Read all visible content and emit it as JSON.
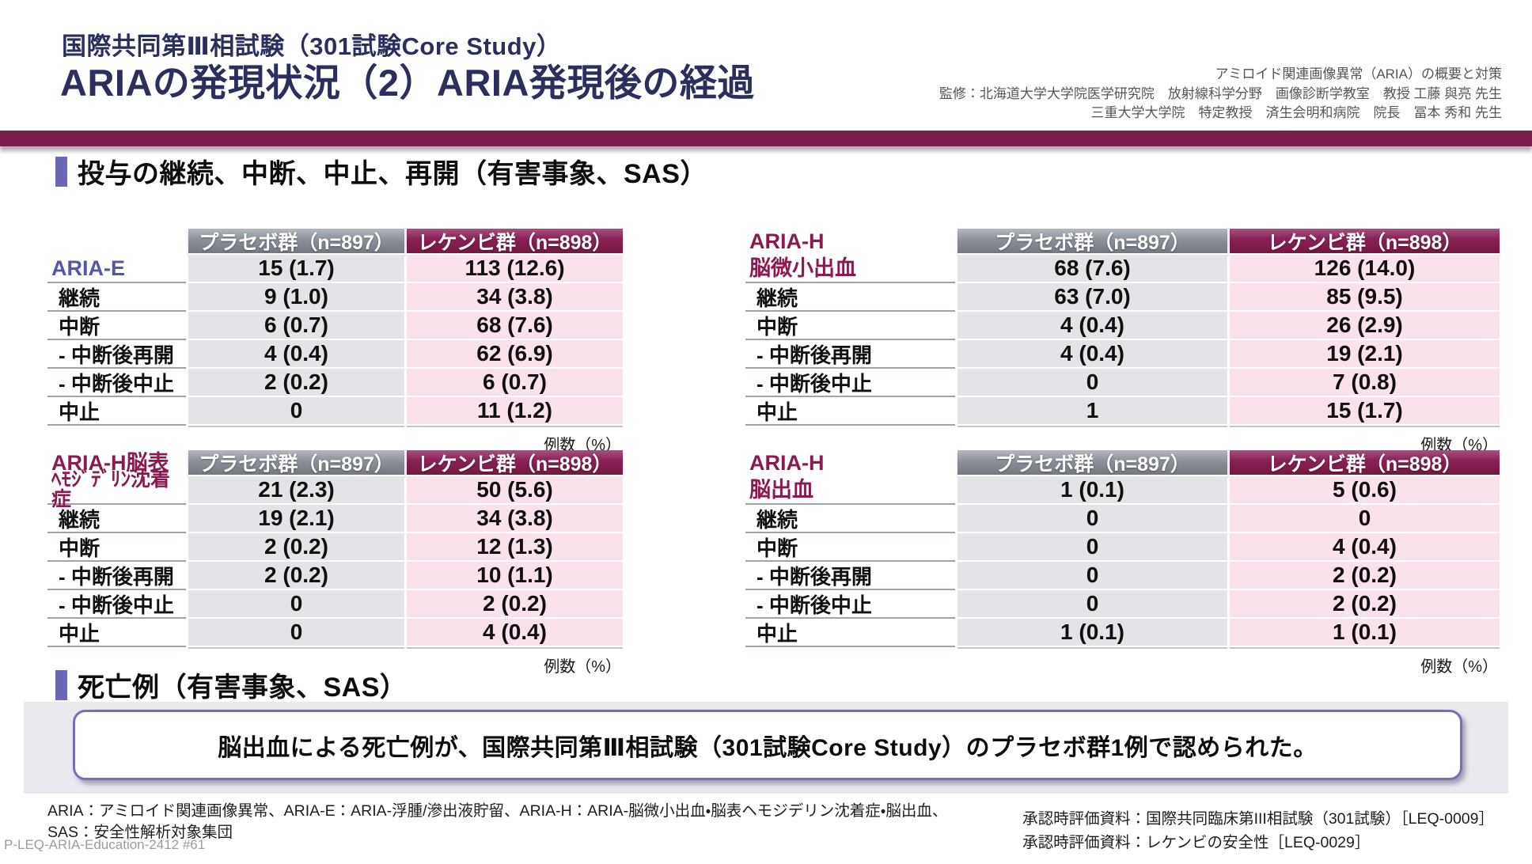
{
  "header": {
    "subtitle": "国際共同第Ⅲ相試験（301試験Core Study）",
    "title": "ARIAの発現状況（2）ARIA発現後の経過",
    "supervision": [
      "アミロイド関連画像異常（ARIA）の概要と対策",
      "監修：北海道大学大学院医学研究院　放射線科学分野　画像診断学教室　教授 工藤 與亮 先生",
      "三重大学大学院　特定教授　済生会明和病院　院長　冨本 秀和 先生"
    ]
  },
  "sections": {
    "continuation": "投与の継続、中断、中止、再開（有害事象、SAS）",
    "death": "死亡例（有害事象、SAS）"
  },
  "unit_label": "例数（%）",
  "col_headers": {
    "placebo": "プラセボ群（n=897）",
    "lecanemab": "レケンビ群（n=898）"
  },
  "tables": [
    {
      "name": "ARIA-E",
      "group_lines": [
        "",
        "ARIA-E"
      ],
      "group_values": [
        "15 (1.7)",
        "113 (12.6)"
      ],
      "rows": [
        {
          "label": "継続",
          "placebo": "9 (1.0)",
          "lecanemab": "34 (3.8)"
        },
        {
          "label": "中断",
          "placebo": "6 (0.7)",
          "lecanemab": "68 (7.6)"
        },
        {
          "label": "- 中断後再開",
          "placebo": "4 (0.4)",
          "lecanemab": "62 (6.9)"
        },
        {
          "label": "- 中断後中止",
          "placebo": "2 (0.2)",
          "lecanemab": "6 (0.7)"
        },
        {
          "label": "中止",
          "placebo": "0",
          "lecanemab": "11 (1.2)"
        }
      ]
    },
    {
      "name": "ARIA-H 脳微小出血",
      "group_lines": [
        "ARIA-H",
        "脳微小出血"
      ],
      "group_values": [
        "68 (7.6)",
        "126 (14.0)"
      ],
      "rows": [
        {
          "label": "継続",
          "placebo": "63 (7.0)",
          "lecanemab": "85 (9.5)"
        },
        {
          "label": "中断",
          "placebo": "4 (0.4)",
          "lecanemab": "26 (2.9)"
        },
        {
          "label": "- 中断後再開",
          "placebo": "4 (0.4)",
          "lecanemab": "19 (2.1)"
        },
        {
          "label": "- 中断後中止",
          "placebo": "0",
          "lecanemab": "7 (0.8)"
        },
        {
          "label": "中止",
          "placebo": "1",
          "lecanemab": "15 (1.7)"
        }
      ]
    },
    {
      "name": "ARIA-H脳表ヘモジデリン沈着症",
      "group_lines": [
        "ARIA-H脳表",
        "ﾍﾓｼﾞﾃﾞﾘﾝ沈着症"
      ],
      "group_values": [
        "21 (2.3)",
        "50 (5.6)"
      ],
      "rows": [
        {
          "label": "継続",
          "placebo": "19 (2.1)",
          "lecanemab": "34 (3.8)"
        },
        {
          "label": "中断",
          "placebo": "2 (0.2)",
          "lecanemab": "12 (1.3)"
        },
        {
          "label": "- 中断後再開",
          "placebo": "2 (0.2)",
          "lecanemab": "10 (1.1)"
        },
        {
          "label": "- 中断後中止",
          "placebo": "0",
          "lecanemab": "2 (0.2)"
        },
        {
          "label": "中止",
          "placebo": "0",
          "lecanemab": "4 (0.4)"
        }
      ]
    },
    {
      "name": "ARIA-H 脳出血",
      "group_lines": [
        "ARIA-H",
        "脳出血"
      ],
      "group_values": [
        "1 (0.1)",
        "5 (0.6)"
      ],
      "rows": [
        {
          "label": "継続",
          "placebo": "0",
          "lecanemab": "0"
        },
        {
          "label": "中断",
          "placebo": "0",
          "lecanemab": "4 (0.4)"
        },
        {
          "label": "- 中断後再開",
          "placebo": "0",
          "lecanemab": "2 (0.2)"
        },
        {
          "label": "- 中断後中止",
          "placebo": "0",
          "lecanemab": "2 (0.2)"
        },
        {
          "label": "中止",
          "placebo": "1 (0.1)",
          "lecanemab": "1 (0.1)"
        }
      ]
    }
  ],
  "death_note": "脳出血による死亡例が、国際共同第Ⅲ相試験（301試験Core Study）のプラセボ群1例で認められた。",
  "footnotes": {
    "left": [
      "ARIA：アミロイド関連画像異常、ARIA-E：ARIA-浮腫/滲出液貯留、ARIA-H：ARIA-脳微小出血・脳表ヘモジデリン沈着症・脳出血、",
      "SAS：安全性解析対象集団"
    ],
    "right": [
      "承認時評価資料：国際共同臨床第III相試験（301試験）［LEQ-0009］",
      "承認時評価資料：レケンビの安全性［LEQ-0029］"
    ]
  },
  "page_code": "P-LEQ-ARIA-Education-2412 #61",
  "colors": {
    "accent_maroon": "#7b1c4c",
    "accent_purple": "#6b66b6",
    "title_navy": "#2b2f5e",
    "placebo_cell": "#e3e4e7",
    "lecanemab_cell": "#f9e2ec",
    "label_purple": "#5456a8",
    "label_maroon": "#8b1a50"
  }
}
